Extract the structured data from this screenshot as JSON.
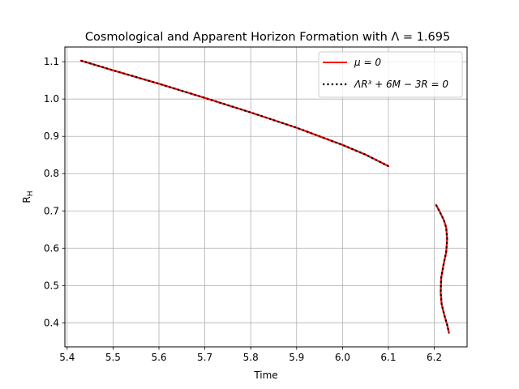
{
  "chart_data": {
    "type": "line",
    "title": "Cosmological and Apparent Horizon Formation with Λ = 1.695",
    "xlabel": "Time",
    "ylabel": "R_H",
    "xlim": [
      5.395,
      6.2715
    ],
    "ylim": [
      0.3355,
      1.1395
    ],
    "xticks": [
      5.4,
      5.5,
      5.6,
      5.7,
      5.8,
      5.9,
      6.0,
      6.1,
      6.2
    ],
    "xtick_labels": [
      "5.4",
      "5.5",
      "5.6",
      "5.7",
      "5.8",
      "5.9",
      "6.0",
      "6.1",
      "6.2"
    ],
    "yticks": [
      0.4,
      0.5,
      0.6,
      0.7,
      0.8,
      0.9,
      1.0,
      1.1
    ],
    "ytick_labels": [
      "0.4",
      "0.5",
      "0.6",
      "0.7",
      "0.8",
      "0.9",
      "1.0",
      "1.1"
    ],
    "grid": true,
    "legend_position": "top-right",
    "series": [
      {
        "name": "μ = 0",
        "color": "#ff0000",
        "style": "solid",
        "segments": [
          {
            "x": [
              5.43,
              5.5,
              5.6,
              5.7,
              5.8,
              5.9,
              6.0,
              6.05,
              6.1
            ],
            "y": [
              1.103,
              1.077,
              1.041,
              1.003,
              0.964,
              0.923,
              0.877,
              0.851,
              0.82
            ]
          },
          {
            "x": [
              6.204,
              6.213,
              6.221,
              6.226,
              6.228,
              6.226,
              6.22,
              6.215,
              6.214,
              6.216,
              6.222,
              6.228,
              6.232
            ],
            "y": [
              0.716,
              0.695,
              0.675,
              0.655,
              0.625,
              0.59,
              0.555,
              0.52,
              0.48,
              0.45,
              0.42,
              0.395,
              0.373
            ]
          }
        ]
      },
      {
        "name": "ΛR³ + 6M − 3R = 0",
        "color": "#000000",
        "style": "dotted",
        "segments": [
          {
            "x": [
              5.43,
              5.5,
              5.6,
              5.7,
              5.8,
              5.9,
              6.0,
              6.05,
              6.1
            ],
            "y": [
              1.103,
              1.077,
              1.041,
              1.003,
              0.964,
              0.923,
              0.877,
              0.851,
              0.82
            ]
          },
          {
            "x": [
              6.204,
              6.213,
              6.221,
              6.226,
              6.228,
              6.226,
              6.22,
              6.215,
              6.214,
              6.216,
              6.222,
              6.228,
              6.232
            ],
            "y": [
              0.716,
              0.695,
              0.675,
              0.655,
              0.625,
              0.59,
              0.555,
              0.52,
              0.48,
              0.45,
              0.42,
              0.395,
              0.373
            ]
          }
        ]
      }
    ]
  }
}
